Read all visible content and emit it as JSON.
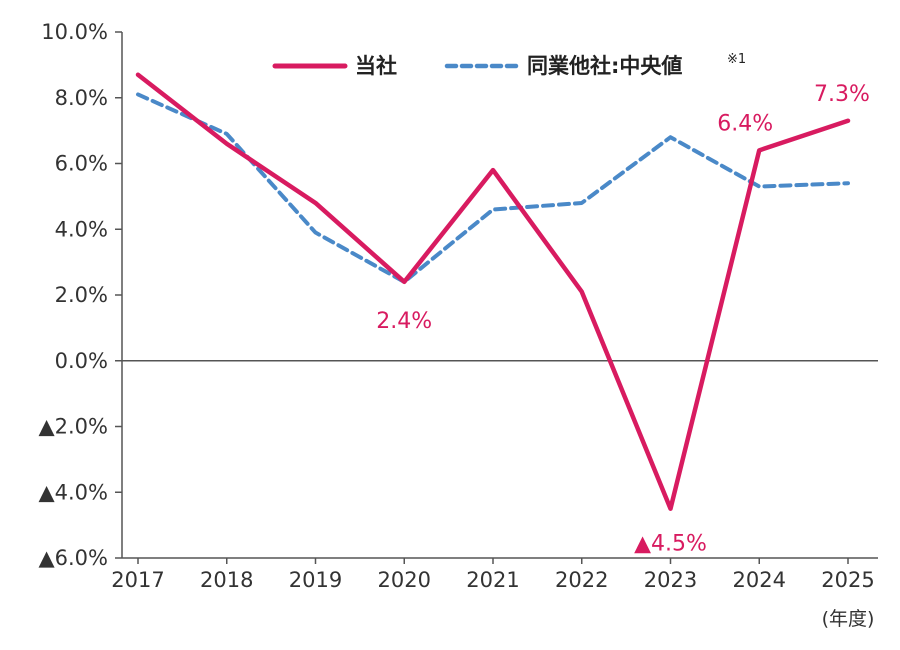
{
  "chart_data": {
    "type": "line",
    "categories": [
      "2017",
      "2018",
      "2019",
      "2020",
      "2021",
      "2022",
      "2023",
      "2024",
      "2025"
    ],
    "x_unit": "(年度)",
    "ylim": [
      -6.0,
      10.0
    ],
    "y_ticks": [
      10.0,
      8.0,
      6.0,
      4.0,
      2.0,
      0.0,
      -2.0,
      -4.0,
      -6.0
    ],
    "y_tick_labels": [
      "10.0%",
      "8.0%",
      "6.0%",
      "4.0%",
      "2.0%",
      "0.0%",
      "▲2.0%",
      "▲4.0%",
      "▲6.0%"
    ],
    "grid": false,
    "zero_line": true,
    "legend_position": "top",
    "series": [
      {
        "name": "当社",
        "style": "solid",
        "color": "#d81b60",
        "values": [
          8.7,
          6.6,
          4.8,
          2.4,
          5.8,
          2.1,
          -4.5,
          6.4,
          7.3
        ]
      },
      {
        "name": "同業他社:中央値",
        "name_note": "※1",
        "style": "dashed",
        "color": "#4a89c8",
        "values": [
          8.1,
          6.9,
          3.9,
          2.4,
          4.6,
          4.8,
          6.8,
          5.3,
          5.4
        ]
      }
    ],
    "annotations": [
      {
        "series": 0,
        "index": 3,
        "text": "2.4%"
      },
      {
        "series": 0,
        "index": 6,
        "text": "▲4.5%"
      },
      {
        "series": 0,
        "index": 7,
        "text": "6.4%"
      },
      {
        "series": 0,
        "index": 8,
        "text": "7.3%"
      }
    ]
  }
}
